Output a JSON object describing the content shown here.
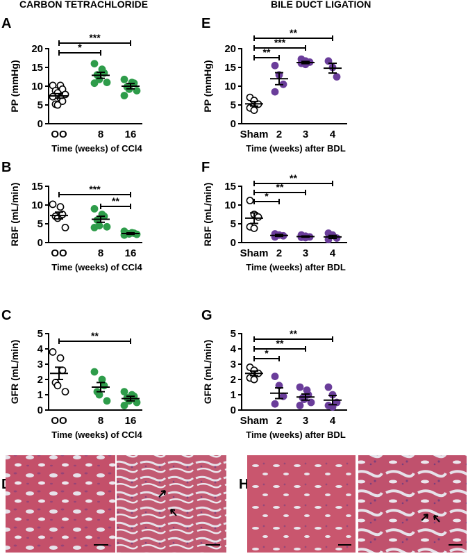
{
  "group_titles": {
    "left": "CARBON TETRACHLORIDE",
    "right": "BILE DUCT LIGATION"
  },
  "micro_letters": [
    "D",
    "H"
  ],
  "colors": {
    "oo": "#ffffff",
    "ccl4": "#2e9c4a",
    "bdl": "#6a3d9a",
    "tissue": "#c4506a",
    "lumen": "#e6e2ea"
  },
  "chart_data": [
    {
      "type": "scatter",
      "letter": "A",
      "ylabel": "PP (mmHg)",
      "xlabel": "Time (weeks) of CCl4",
      "ylim": [
        0,
        20
      ],
      "yticks": [
        0,
        5,
        10,
        15,
        20
      ],
      "categories": [
        "OO",
        "8",
        "16"
      ],
      "colors": [
        "#ffffff",
        "#2e9c4a",
        "#2e9c4a"
      ],
      "points": [
        [
          10.2,
          10.2,
          9.2,
          8.8,
          8.2,
          7.8,
          7.2,
          6.8,
          6.0,
          5.2,
          5.0
        ],
        [
          16.0,
          14.5,
          13.5,
          13.0,
          11.8,
          11.0,
          10.8
        ],
        [
          11.8,
          11.0,
          10.8,
          9.8,
          9.2,
          8.8,
          7.5
        ]
      ],
      "means": [
        7.4,
        12.9,
        10.0
      ],
      "sems": [
        0.6,
        0.8,
        0.7
      ],
      "sig": [
        {
          "from": 0,
          "to": 1,
          "level": 0,
          "label": "*"
        },
        {
          "from": 0,
          "to": 2,
          "level": 1,
          "label": "***"
        }
      ]
    },
    {
      "type": "scatter",
      "letter": "B",
      "ylabel": "RBF (mL/min)",
      "xlabel": "Time (weeks) of CCl4",
      "ylim": [
        0,
        15
      ],
      "yticks": [
        0,
        5,
        10,
        15
      ],
      "categories": [
        "OO",
        "8",
        "16"
      ],
      "colors": [
        "#ffffff",
        "#2e9c4a",
        "#2e9c4a"
      ],
      "points": [
        [
          10.2,
          9.5,
          7.5,
          7.0,
          6.5,
          4.0
        ],
        [
          9.0,
          7.5,
          7.0,
          6.0,
          4.5,
          4.2,
          4.0
        ],
        [
          3.0,
          2.6,
          2.5,
          2.4,
          2.3,
          2.2,
          2.0
        ]
      ],
      "means": [
        7.2,
        6.2,
        2.4
      ],
      "sems": [
        0.9,
        0.8,
        0.2
      ],
      "sig": [
        {
          "from": 1,
          "to": 2,
          "level": 0,
          "label": "**"
        },
        {
          "from": 0,
          "to": 2,
          "level": 1,
          "label": "***"
        }
      ]
    },
    {
      "type": "scatter",
      "letter": "C",
      "ylabel": "GFR (mL/min)",
      "xlabel": "Time (weeks) of CCl4",
      "ylim": [
        0,
        5
      ],
      "yticks": [
        0,
        1,
        2,
        3,
        4,
        5
      ],
      "categories": [
        "OO",
        "8",
        "16"
      ],
      "colors": [
        "#ffffff",
        "#2e9c4a",
        "#2e9c4a"
      ],
      "points": [
        [
          3.8,
          3.4,
          2.6,
          1.8,
          1.6,
          1.2
        ],
        [
          2.5,
          2.0,
          1.6,
          1.2,
          1.0,
          0.6
        ],
        [
          1.2,
          1.0,
          0.9,
          0.8,
          0.6,
          0.5,
          0.3
        ]
      ],
      "means": [
        2.4,
        1.5,
        0.75
      ],
      "sems": [
        0.4,
        0.3,
        0.15
      ],
      "sig": [
        {
          "from": 0,
          "to": 2,
          "level": 0,
          "label": "**"
        }
      ]
    },
    {
      "type": "scatter",
      "letter": "E",
      "ylabel": "PP (mmHg)",
      "xlabel": "Time (weeks) after BDL",
      "ylim": [
        0,
        20
      ],
      "yticks": [
        0,
        5,
        10,
        15,
        20
      ],
      "categories": [
        "Sham",
        "2",
        "3",
        "4"
      ],
      "colors": [
        "#ffffff",
        "#6a3d9a",
        "#6a3d9a",
        "#6a3d9a"
      ],
      "points": [
        [
          7.0,
          6.2,
          5.2,
          4.2,
          3.6
        ],
        [
          15.5,
          13.0,
          10.5,
          8.5
        ],
        [
          17.2,
          16.7,
          16.4,
          16.1,
          15.8
        ],
        [
          16.7,
          15.0,
          12.5
        ]
      ],
      "means": [
        5.3,
        12.0,
        16.3,
        14.8
      ],
      "sems": [
        0.6,
        1.6,
        0.3,
        1.3
      ],
      "sig": [
        {
          "from": 0,
          "to": 1,
          "level": 0,
          "label": "**"
        },
        {
          "from": 0,
          "to": 2,
          "level": 1,
          "label": "***"
        },
        {
          "from": 0,
          "to": 3,
          "level": 2,
          "label": "**"
        }
      ]
    },
    {
      "type": "scatter",
      "letter": "F",
      "ylabel": "RBF (mL/min)",
      "xlabel": "Time (weeks) after BDL",
      "ylim": [
        0,
        15
      ],
      "yticks": [
        0,
        5,
        10,
        15
      ],
      "categories": [
        "Sham",
        "2",
        "3",
        "4"
      ],
      "colors": [
        "#ffffff",
        "#6a3d9a",
        "#6a3d9a",
        "#6a3d9a"
      ],
      "points": [
        [
          11.2,
          7.5,
          6.8,
          4.2,
          3.8
        ],
        [
          2.3,
          2.0,
          1.8,
          1.5
        ],
        [
          2.0,
          1.7,
          1.5,
          1.4,
          1.3
        ],
        [
          2.5,
          2.0,
          1.2,
          0.8
        ]
      ],
      "means": [
        6.5,
        1.9,
        1.6,
        1.5
      ],
      "sems": [
        1.4,
        0.25,
        0.15,
        0.4
      ],
      "sig": [
        {
          "from": 0,
          "to": 1,
          "level": 0,
          "label": "*"
        },
        {
          "from": 0,
          "to": 2,
          "level": 1,
          "label": "**"
        },
        {
          "from": 0,
          "to": 3,
          "level": 2,
          "label": "**"
        }
      ]
    },
    {
      "type": "scatter",
      "letter": "G",
      "ylabel": "GFR (mL/min)",
      "xlabel": "Time (weeks) after BDL",
      "ylim": [
        0,
        5
      ],
      "yticks": [
        0,
        1,
        2,
        3,
        4,
        5
      ],
      "categories": [
        "Sham",
        "2",
        "3",
        "4"
      ],
      "colors": [
        "#ffffff",
        "#6a3d9a",
        "#6a3d9a",
        "#6a3d9a"
      ],
      "points": [
        [
          2.8,
          2.6,
          2.4,
          2.1,
          2.0
        ],
        [
          2.2,
          1.6,
          0.9,
          0.4
        ],
        [
          1.5,
          1.3,
          1.0,
          0.8,
          0.7,
          0.5,
          0.3
        ],
        [
          1.5,
          1.0,
          0.5,
          0.3,
          0.2
        ]
      ],
      "means": [
        2.4,
        1.1,
        0.85,
        0.65
      ],
      "sems": [
        0.15,
        0.35,
        0.2,
        0.3
      ],
      "sig": [
        {
          "from": 0,
          "to": 1,
          "level": 0,
          "label": "*"
        },
        {
          "from": 0,
          "to": 2,
          "level": 1,
          "label": "**"
        },
        {
          "from": 0,
          "to": 3,
          "level": 2,
          "label": "**"
        }
      ]
    }
  ]
}
